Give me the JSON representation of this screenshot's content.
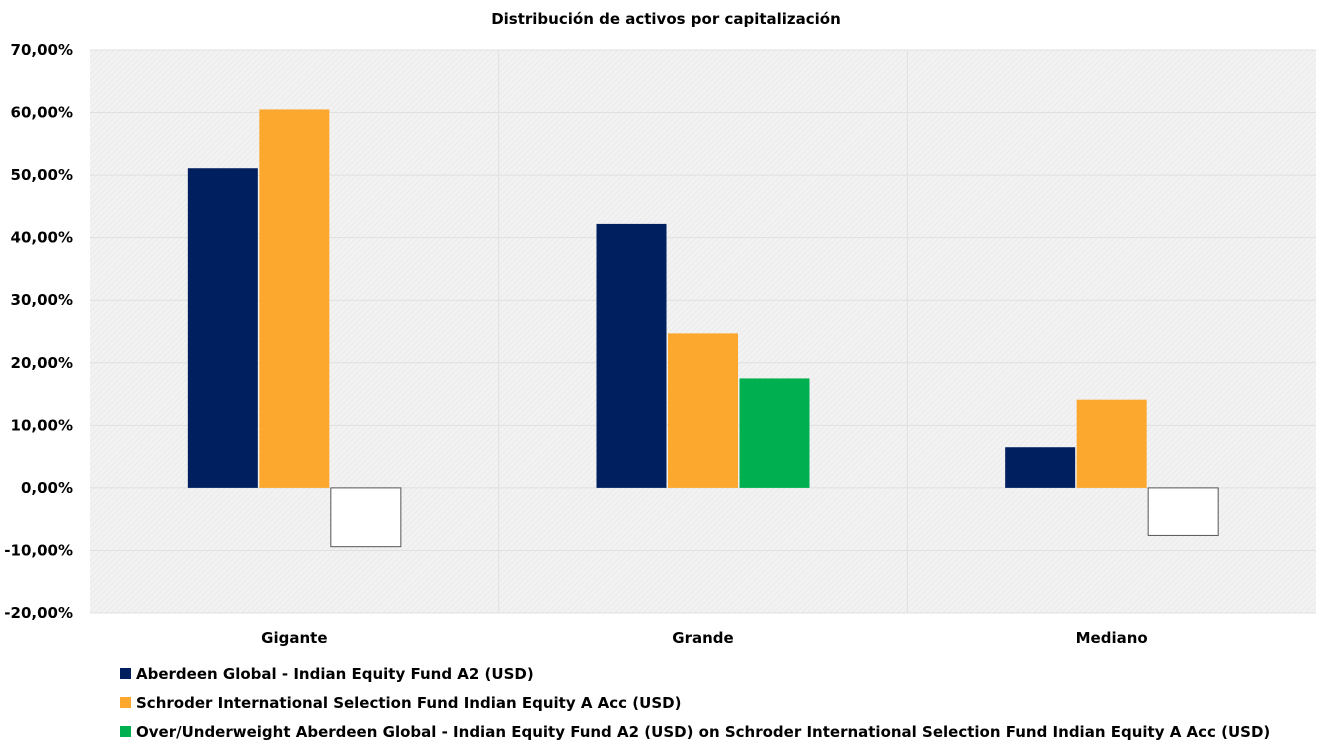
{
  "chart_data": {
    "type": "bar",
    "title": "Distribución de activos por capitalización",
    "categories": [
      "Gigante",
      "Grande",
      "Mediano"
    ],
    "series": [
      {
        "name": "Aberdeen Global - Indian Equity Fund A2 (USD)",
        "color": "#001f5f",
        "values": [
          51.1,
          42.2,
          6.5
        ]
      },
      {
        "name": "Schroder International Selection Fund Indian Equity A Acc (USD)",
        "color": "#fca82e",
        "values": [
          60.5,
          24.7,
          14.1
        ]
      },
      {
        "name": "Over/Underweight Aberdeen Global - Indian Equity Fund A2 (USD) on Schroder International Selection Fund Indian Equity A Acc (USD)",
        "color": "#00b050",
        "negative_color": "#ffffff",
        "values": [
          -9.4,
          17.5,
          -7.6
        ]
      }
    ],
    "ylim": [
      -20,
      70
    ],
    "yticks": [
      "70,00%",
      "60,00%",
      "50,00%",
      "40,00%",
      "30,00%",
      "20,00%",
      "10,00%",
      "0,00%",
      "-10,00%",
      "-20,00%"
    ],
    "ytick_values": [
      70,
      60,
      50,
      40,
      30,
      20,
      10,
      0,
      -10,
      -20
    ],
    "grid": true,
    "legend": "bottom-left",
    "plot_background": "#f2f2f2"
  }
}
